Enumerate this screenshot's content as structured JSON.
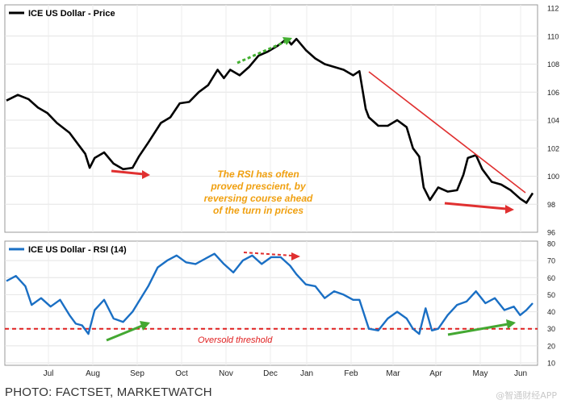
{
  "caption": "PHOTO: FACTSET, MARKETWATCH",
  "watermark": "@智通财经APP",
  "colors": {
    "price_line": "#000000",
    "rsi_line": "#1a6fc4",
    "threshold": "#e02020",
    "annotation_text": "#f0a010",
    "trend_red": "#e03030",
    "arrow_green": "#44a832",
    "dashed_green": "#44b032",
    "dashed_red": "#e03030",
    "grid": "#dddddd"
  },
  "chart_data": [
    {
      "type": "line",
      "title": "ICE US Dollar - Price",
      "ylim": [
        96,
        112
      ],
      "yticks": [
        "96",
        "98",
        "100",
        "102",
        "104",
        "106",
        "108",
        "110",
        "112"
      ],
      "x_months": [
        "Jul",
        "Aug",
        "Sep",
        "Oct",
        "Nov",
        "Dec",
        "Jan",
        "Feb",
        "Mar",
        "Apr",
        "May",
        "Jun"
      ],
      "series": [
        {
          "name": "ICE US Dollar - Price",
          "points": [
            [
              0,
              105.4
            ],
            [
              0.18,
              105.8
            ],
            [
              0.35,
              105.5
            ],
            [
              0.5,
              104.9
            ],
            [
              0.65,
              104.5
            ],
            [
              0.8,
              103.8
            ],
            [
              1.0,
              103.1
            ],
            [
              1.15,
              102.2
            ],
            [
              1.25,
              101.6
            ],
            [
              1.32,
              100.6
            ],
            [
              1.4,
              101.3
            ],
            [
              1.55,
              101.7
            ],
            [
              1.7,
              100.9
            ],
            [
              1.85,
              100.5
            ],
            [
              2.0,
              100.6
            ],
            [
              2.1,
              101.4
            ],
            [
              2.25,
              102.4
            ],
            [
              2.45,
              103.8
            ],
            [
              2.6,
              104.2
            ],
            [
              2.75,
              105.2
            ],
            [
              2.9,
              105.3
            ],
            [
              3.05,
              106.0
            ],
            [
              3.2,
              106.5
            ],
            [
              3.35,
              107.6
            ],
            [
              3.45,
              107.0
            ],
            [
              3.55,
              107.6
            ],
            [
              3.7,
              107.2
            ],
            [
              3.85,
              107.8
            ],
            [
              4.0,
              108.6
            ],
            [
              4.15,
              108.9
            ],
            [
              4.3,
              109.3
            ],
            [
              4.45,
              109.8
            ],
            [
              4.52,
              109.4
            ],
            [
              4.6,
              109.8
            ],
            [
              4.75,
              109.0
            ],
            [
              4.9,
              108.4
            ],
            [
              5.05,
              108.0
            ],
            [
              5.2,
              107.8
            ],
            [
              5.35,
              107.6
            ],
            [
              5.5,
              107.2
            ],
            [
              5.6,
              107.5
            ],
            [
              5.7,
              104.8
            ],
            [
              5.75,
              104.2
            ],
            [
              5.9,
              103.6
            ],
            [
              6.05,
              103.6
            ],
            [
              6.2,
              104.0
            ],
            [
              6.35,
              103.5
            ],
            [
              6.45,
              102.0
            ],
            [
              6.55,
              101.4
            ],
            [
              6.62,
              99.2
            ],
            [
              6.72,
              98.3
            ],
            [
              6.85,
              99.2
            ],
            [
              7.0,
              98.9
            ],
            [
              7.15,
              99.0
            ],
            [
              7.25,
              100.1
            ],
            [
              7.32,
              101.3
            ],
            [
              7.45,
              101.5
            ],
            [
              7.55,
              100.5
            ],
            [
              7.7,
              99.6
            ],
            [
              7.85,
              99.4
            ],
            [
              8.0,
              99.0
            ],
            [
              8.15,
              98.4
            ],
            [
              8.25,
              98.1
            ],
            [
              8.35,
              98.8
            ]
          ]
        }
      ],
      "annotations": [
        "The RSI has often",
        "proved prescient, by",
        "reversing course ahead",
        "of the turn in prices"
      ]
    },
    {
      "type": "line",
      "title": "ICE US Dollar - RSI (14)",
      "ylim": [
        10,
        80
      ],
      "yticks": [
        "10",
        "20",
        "30",
        "40",
        "50",
        "60",
        "70",
        "80"
      ],
      "x_months": [
        "Jul",
        "Aug",
        "Sep",
        "Oct",
        "Nov",
        "Dec",
        "Jan",
        "Feb",
        "Mar",
        "Apr",
        "May",
        "Jun"
      ],
      "threshold": 30,
      "threshold_label": "Oversold threshold",
      "series": [
        {
          "name": "ICE US Dollar - RSI (14)",
          "points": [
            [
              0,
              58
            ],
            [
              0.15,
              61
            ],
            [
              0.3,
              55
            ],
            [
              0.4,
              44
            ],
            [
              0.55,
              48
            ],
            [
              0.7,
              43
            ],
            [
              0.85,
              47
            ],
            [
              1.0,
              38
            ],
            [
              1.1,
              33
            ],
            [
              1.2,
              32
            ],
            [
              1.3,
              27
            ],
            [
              1.4,
              41
            ],
            [
              1.55,
              47
            ],
            [
              1.7,
              36
            ],
            [
              1.85,
              34
            ],
            [
              2.0,
              40
            ],
            [
              2.1,
              46
            ],
            [
              2.25,
              55
            ],
            [
              2.4,
              66
            ],
            [
              2.55,
              70
            ],
            [
              2.7,
              73
            ],
            [
              2.85,
              69
            ],
            [
              3.0,
              68
            ],
            [
              3.15,
              71
            ],
            [
              3.3,
              74
            ],
            [
              3.45,
              68
            ],
            [
              3.6,
              63
            ],
            [
              3.75,
              70
            ],
            [
              3.9,
              73
            ],
            [
              4.05,
              68
            ],
            [
              4.2,
              72
            ],
            [
              4.35,
              72
            ],
            [
              4.5,
              67
            ],
            [
              4.6,
              62
            ],
            [
              4.75,
              56
            ],
            [
              4.9,
              55
            ],
            [
              5.05,
              48
            ],
            [
              5.2,
              52
            ],
            [
              5.35,
              50
            ],
            [
              5.5,
              47
            ],
            [
              5.6,
              47
            ],
            [
              5.75,
              30
            ],
            [
              5.9,
              29
            ],
            [
              6.05,
              36
            ],
            [
              6.2,
              40
            ],
            [
              6.35,
              36
            ],
            [
              6.45,
              30
            ],
            [
              6.55,
              27
            ],
            [
              6.65,
              42
            ],
            [
              6.75,
              29
            ],
            [
              6.85,
              30
            ],
            [
              7.0,
              38
            ],
            [
              7.15,
              44
            ],
            [
              7.3,
              46
            ],
            [
              7.45,
              52
            ],
            [
              7.6,
              45
            ],
            [
              7.75,
              48
            ],
            [
              7.9,
              41
            ],
            [
              8.05,
              43
            ],
            [
              8.15,
              38
            ],
            [
              8.25,
              41
            ],
            [
              8.35,
              45
            ]
          ]
        }
      ]
    }
  ]
}
